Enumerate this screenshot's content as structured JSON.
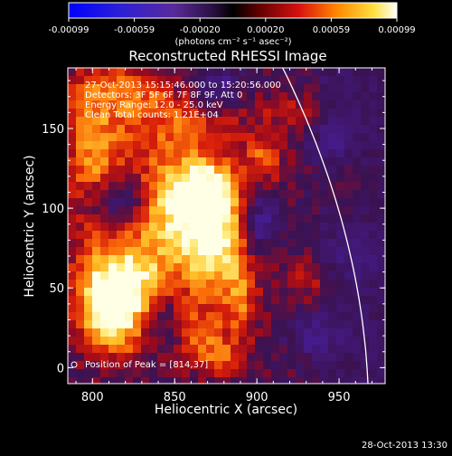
{
  "colorbar": {
    "ticks": [
      "-0.00099",
      "-0.00059",
      "-0.00020",
      "0.00020",
      "0.00059",
      "0.00099"
    ],
    "unit_label": "(photons cm⁻² s⁻¹ asec⁻²)"
  },
  "plot": {
    "title": "Reconstructed RHESSI Image",
    "xlabel": "Heliocentric X (arcsec)",
    "ylabel": "Heliocentric Y (arcsec)",
    "xticks": [
      "800",
      "850",
      "900",
      "950"
    ],
    "yticks": [
      "0",
      "50",
      "100",
      "150"
    ],
    "info_lines": [
      "27-Oct-2013 15:15:46.000 to 15:20:56.000",
      "Detectors: 3F 5F 6F 7F 8F 9F, Att 0",
      "Energy Range: 12.0 - 25.0 keV",
      "Clean     Total counts: 1.21E+04"
    ],
    "peak_label": "Position of Peak = [814,37]"
  },
  "footer": {
    "timestamp": "28-Oct-2013 13:30"
  },
  "colors": {
    "background": "#000000",
    "limb": "#ffffff"
  },
  "chart_data": {
    "type": "heatmap",
    "title": "Reconstructed RHESSI Image",
    "xlabel": "Heliocentric X (arcsec)",
    "ylabel": "Heliocentric Y (arcsec)",
    "xlim": [
      785,
      978
    ],
    "ylim": [
      -10,
      188
    ],
    "peak": [
      814,
      37
    ],
    "colorbar_range": [
      -0.00099,
      0.00099
    ],
    "blobs": [
      {
        "x": 814,
        "y": 37,
        "sx": 16,
        "sy": 20,
        "a": 1.0
      },
      {
        "x": 822,
        "y": 58,
        "sx": 22,
        "sy": 20,
        "a": 0.55
      },
      {
        "x": 875,
        "y": 80,
        "sx": 16,
        "sy": 24,
        "a": 0.95
      },
      {
        "x": 868,
        "y": 112,
        "sx": 14,
        "sy": 12,
        "a": 0.75
      },
      {
        "x": 845,
        "y": 100,
        "sx": 16,
        "sy": 22,
        "a": 0.6
      },
      {
        "x": 800,
        "y": 130,
        "sx": 12,
        "sy": 30,
        "a": 0.55
      },
      {
        "x": 850,
        "y": 150,
        "sx": 30,
        "sy": 18,
        "a": 0.45
      },
      {
        "x": 815,
        "y": 175,
        "sx": 22,
        "sy": 12,
        "a": 0.4
      },
      {
        "x": 890,
        "y": 40,
        "sx": 8,
        "sy": 16,
        "a": 0.4
      },
      {
        "x": 865,
        "y": 20,
        "sx": 12,
        "sy": 14,
        "a": 0.45
      },
      {
        "x": 880,
        "y": 5,
        "sx": 10,
        "sy": 8,
        "a": 0.35
      },
      {
        "x": 905,
        "y": 130,
        "sx": 8,
        "sy": 10,
        "a": 0.45
      },
      {
        "x": 930,
        "y": 55,
        "sx": 10,
        "sy": 8,
        "a": 0.3
      },
      {
        "x": 955,
        "y": 115,
        "sx": 8,
        "sy": 12,
        "a": 0.3
      },
      {
        "x": 920,
        "y": 160,
        "sx": 14,
        "sy": 8,
        "a": 0.25
      }
    ],
    "neg_blobs": [
      {
        "x": 815,
        "y": 105,
        "sx": 12,
        "sy": 10,
        "a": 0.5
      },
      {
        "x": 840,
        "y": 30,
        "sx": 10,
        "sy": 12,
        "a": 0.45
      },
      {
        "x": 900,
        "y": 90,
        "sx": 8,
        "sy": 16,
        "a": 0.5
      },
      {
        "x": 875,
        "y": 175,
        "sx": 12,
        "sy": 10,
        "a": 0.4
      },
      {
        "x": 945,
        "y": 140,
        "sx": 10,
        "sy": 10,
        "a": 0.3
      },
      {
        "x": 935,
        "y": 20,
        "sx": 12,
        "sy": 10,
        "a": 0.3
      },
      {
        "x": 960,
        "y": 70,
        "sx": 10,
        "sy": 10,
        "a": 0.25
      }
    ]
  }
}
